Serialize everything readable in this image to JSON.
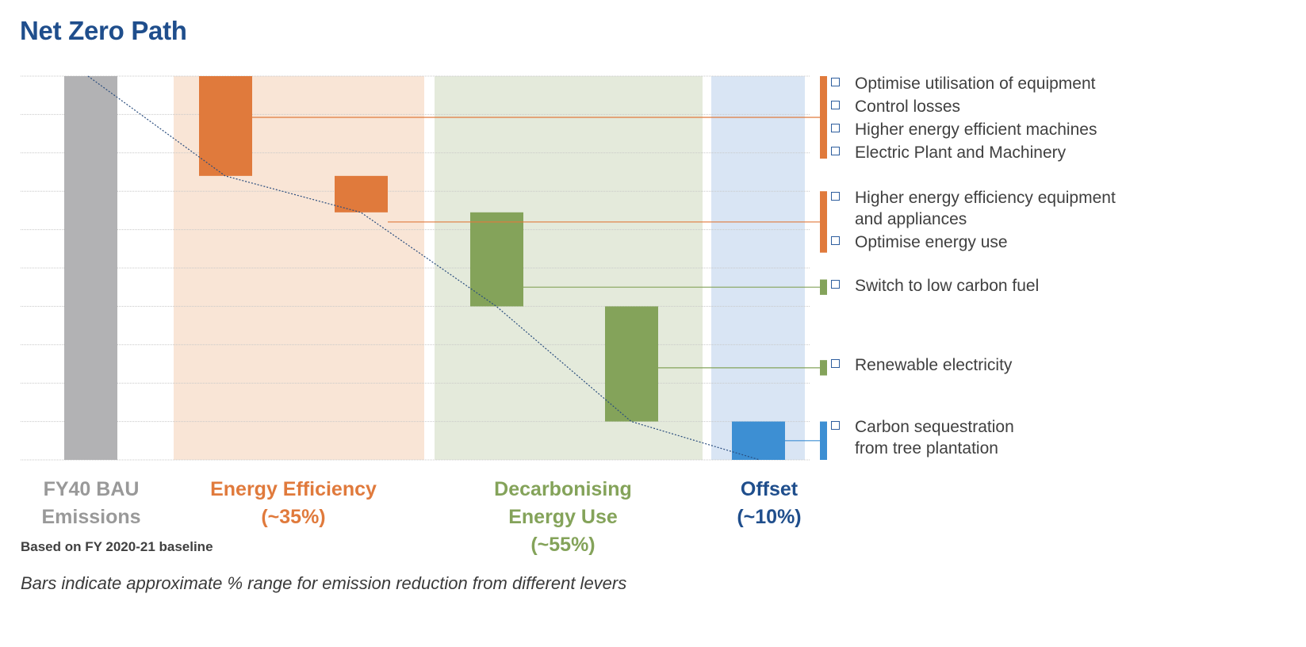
{
  "title": "Net Zero Path",
  "colors": {
    "title": "#1f4e8c",
    "bau": "#b2b2b4",
    "efficiency": "#e07a3c",
    "efficiency_bg": "#f9e5d6",
    "decarb": "#84a35a",
    "decarb_bg": "#e4eadb",
    "offset": "#3d8fd3",
    "offset_bg": "#d9e5f4",
    "offset_label": "#1f4e8c",
    "bau_label": "#999999",
    "trend": "#2a4d7e"
  },
  "chart_data": {
    "type": "waterfall",
    "title": "Net Zero Path",
    "ylim": [
      0,
      100
    ],
    "y_unit": "% of FY40 BAU emissions",
    "grid": true,
    "bars": [
      {
        "name": "FY40 BAU Emissions",
        "group": "bau",
        "start": 100,
        "end": 0
      },
      {
        "name": "Energy Efficiency step 1",
        "group": "efficiency",
        "start": 100,
        "end": 74
      },
      {
        "name": "Energy Efficiency step 2",
        "group": "efficiency",
        "start": 74,
        "end": 64.5
      },
      {
        "name": "Decarbonising step 1",
        "group": "decarb",
        "start": 64.5,
        "end": 40
      },
      {
        "name": "Decarbonising step 2",
        "group": "decarb",
        "start": 40,
        "end": 10
      },
      {
        "name": "Offset",
        "group": "offset",
        "start": 10,
        "end": 0
      }
    ],
    "categories": [
      {
        "key": "bau",
        "lines": [
          "FY40 BAU",
          "Emissions"
        ]
      },
      {
        "key": "efficiency",
        "lines": [
          "Energy Efficiency",
          "(~35%)"
        ]
      },
      {
        "key": "decarb",
        "lines": [
          "Decarbonising",
          "Energy Use",
          "(~55%)"
        ]
      },
      {
        "key": "offset",
        "lines": [
          "Offset",
          "(~10%)"
        ]
      }
    ],
    "right_segments": [
      {
        "group": "efficiency",
        "start": 100,
        "end": 78.5
      },
      {
        "group": "efficiency",
        "start": 70,
        "end": 54
      },
      {
        "group": "decarb",
        "start": 47,
        "end": 43
      },
      {
        "group": "decarb",
        "start": 26,
        "end": 22
      },
      {
        "group": "offset",
        "start": 10,
        "end": 0
      }
    ]
  },
  "levers": [
    {
      "lines": [
        "Optimise utilisation of equipment"
      ]
    },
    {
      "lines": [
        "Control losses"
      ]
    },
    {
      "lines": [
        "Higher energy efficient machines"
      ]
    },
    {
      "lines": [
        "Electric Plant and Machinery"
      ]
    },
    {
      "lines": [
        "Higher energy efficiency equipment",
        "and appliances"
      ]
    },
    {
      "lines": [
        "Optimise energy use"
      ]
    },
    {
      "lines": [
        "Switch to low carbon fuel"
      ]
    },
    {
      "lines": [
        "Renewable electricity"
      ]
    },
    {
      "lines": [
        "Carbon sequestration",
        "from tree plantation"
      ]
    }
  ],
  "baseline_note": "Based on FY 2020-21 baseline",
  "footnote": "Bars indicate approximate % range for emission reduction from different levers"
}
